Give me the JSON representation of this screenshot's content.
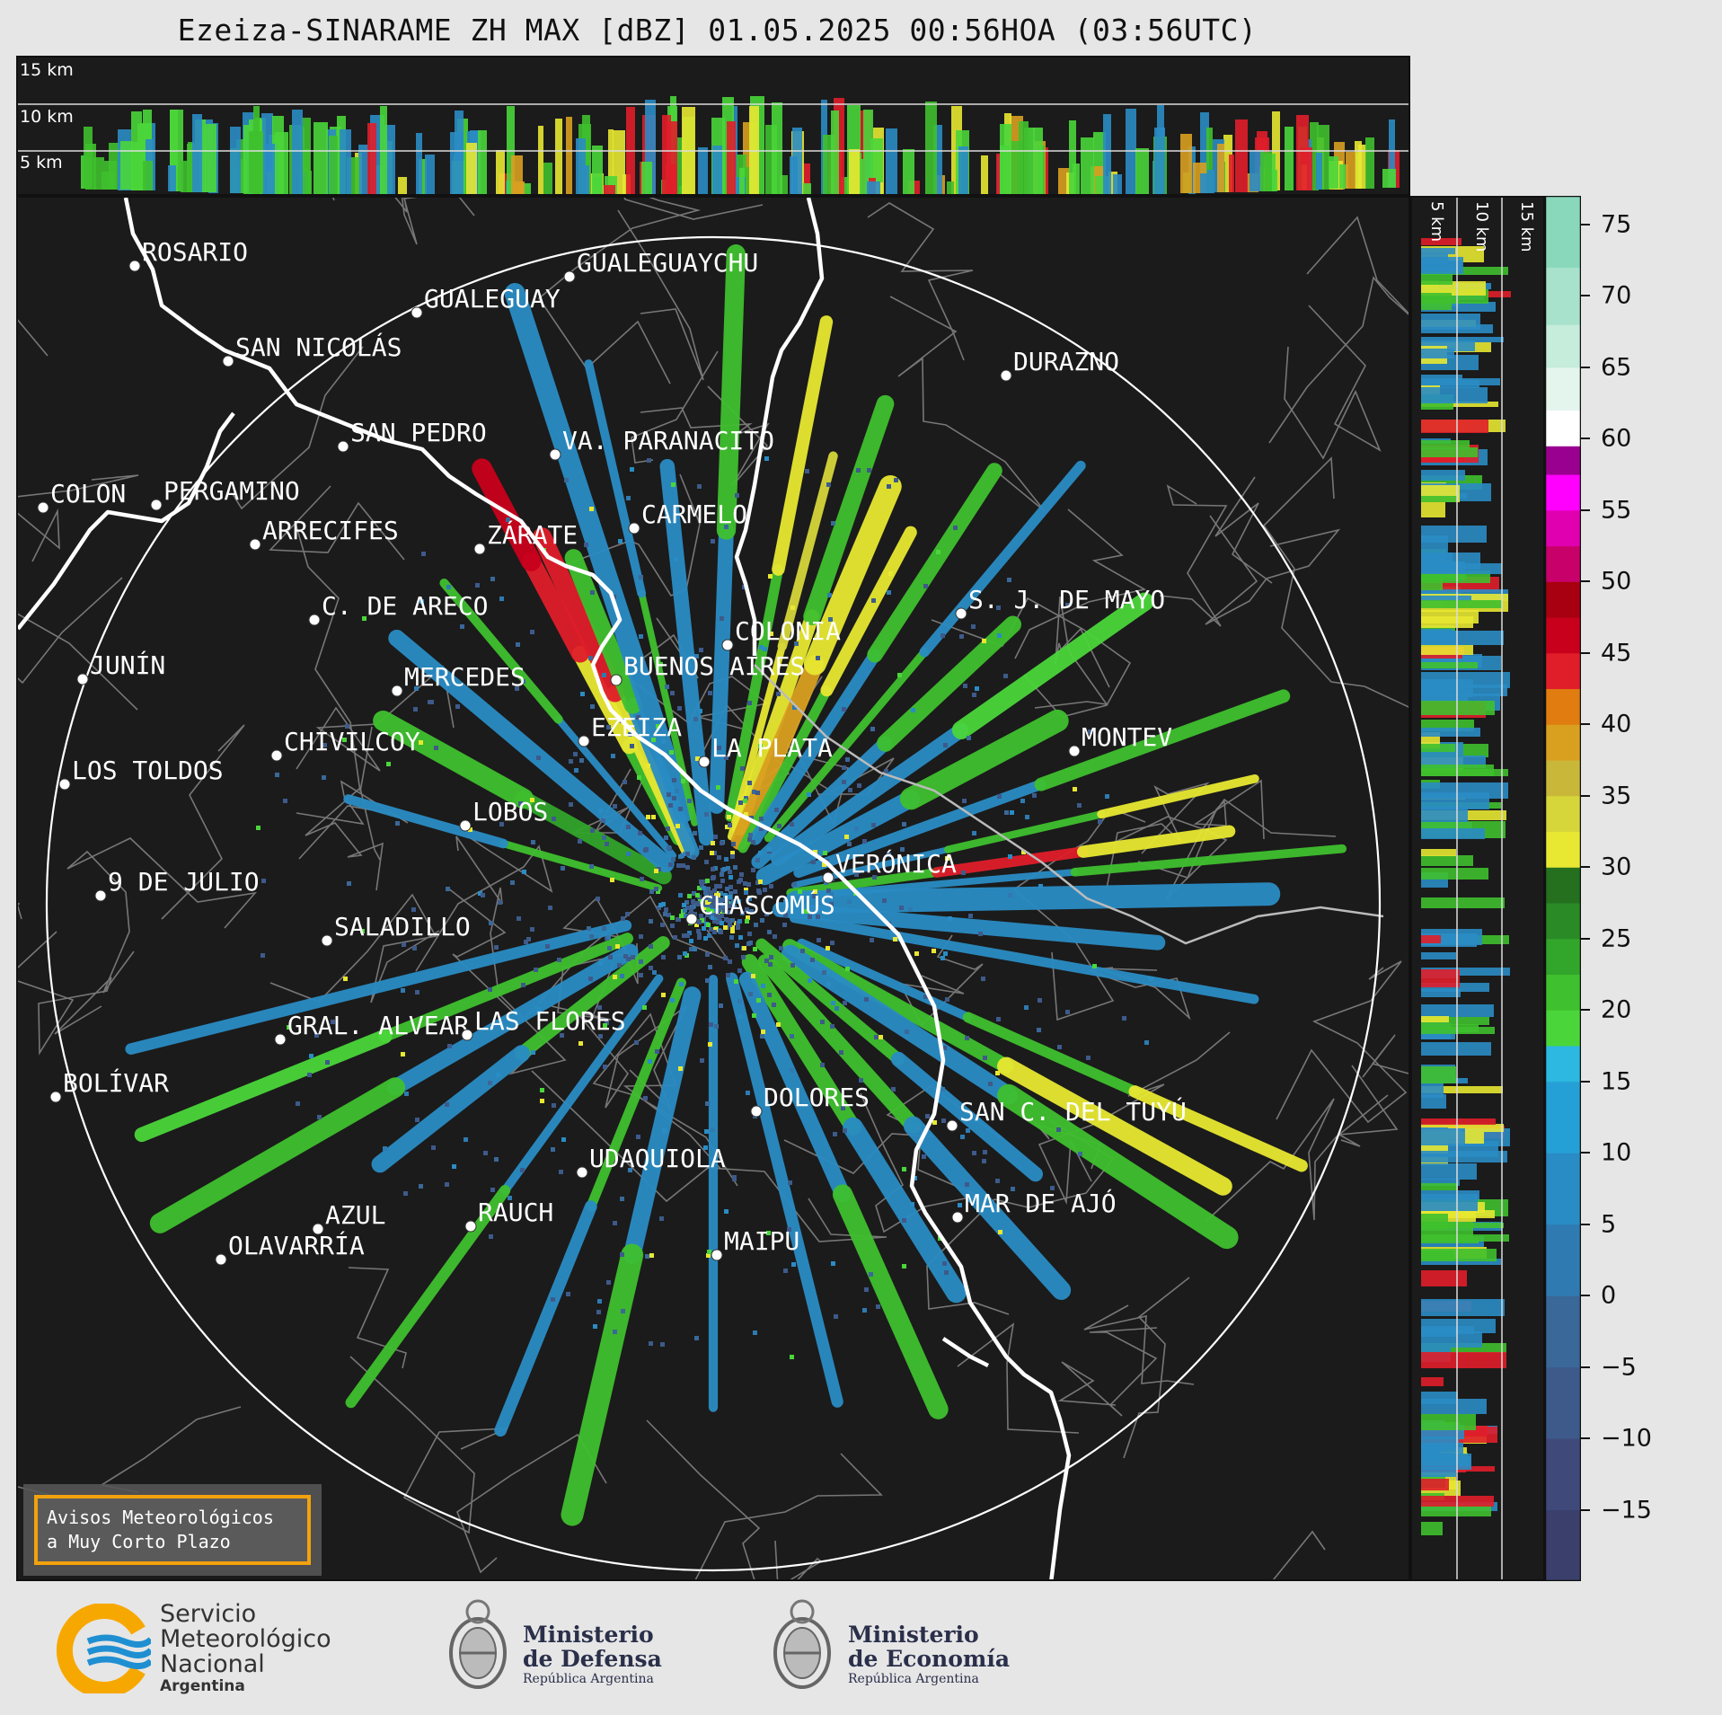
{
  "title": "Ezeiza-SINARAME ZH MAX [dBZ] 01.05.2025 00:56HOA (03:56UTC)",
  "top_panel": {
    "height_labels": [
      "15 km",
      "10 km",
      "5 km"
    ]
  },
  "side_panel": {
    "height_labels": [
      "5 km",
      "10 km",
      "15 km"
    ]
  },
  "colorbar": {
    "ticks": [
      "75",
      "70",
      "65",
      "60",
      "55",
      "50",
      "45",
      "40",
      "35",
      "30",
      "25",
      "20",
      "15",
      "10",
      "5",
      "0",
      "−5",
      "−10",
      "−15"
    ],
    "colors": [
      "#3a3f6b",
      "#3f4a7a",
      "#3d5a8a",
      "#3a6898",
      "#2f7ab0",
      "#2a8cc4",
      "#25a0d6",
      "#2cb8e0",
      "#4ad63a",
      "#3fc02e",
      "#32a52b",
      "#2a8a26",
      "#24701f",
      "#e8e832",
      "#d6d63a",
      "#c9b73a",
      "#d9a020",
      "#e07c10",
      "#e01e2a",
      "#c8001c",
      "#a80010",
      "#c8006a",
      "#e000b0",
      "#ff00ff",
      "#9a0090",
      "#ffffff",
      "#e4f5ee",
      "#c6ecdc",
      "#a8e2cc",
      "#8ad8bc"
    ]
  },
  "map": {
    "cities": [
      {
        "name": "ROSARIO"
      },
      {
        "name": "GUALEGUAYCHU"
      },
      {
        "name": "GUALEGUAY"
      },
      {
        "name": "SAN NICOLÁS"
      },
      {
        "name": "DURAZNO"
      },
      {
        "name": "SAN PEDRO"
      },
      {
        "name": "VA. PARANACITO"
      },
      {
        "name": "COLON"
      },
      {
        "name": "PERGAMINO"
      },
      {
        "name": "CARMELO"
      },
      {
        "name": "ARRECIFES"
      },
      {
        "name": "ZÁRATE"
      },
      {
        "name": "S. J. DE MAYO"
      },
      {
        "name": "C. DE ARECO"
      },
      {
        "name": "COLONIA"
      },
      {
        "name": "JUNÍN"
      },
      {
        "name": "BUENOS AIRES"
      },
      {
        "name": "MERCEDES"
      },
      {
        "name": "EZEIZA"
      },
      {
        "name": "MONTEV"
      },
      {
        "name": "CHIVILCOY"
      },
      {
        "name": "LA PLATA"
      },
      {
        "name": "LOS TOLDOS"
      },
      {
        "name": "LOBOS"
      },
      {
        "name": "VERÓNICA"
      },
      {
        "name": "9 DE JULIO"
      },
      {
        "name": "CHASCOMÚS"
      },
      {
        "name": "SALADILLO"
      },
      {
        "name": "GRAL. ALVEAR"
      },
      {
        "name": "LAS FLORES"
      },
      {
        "name": "BOLÍVAR"
      },
      {
        "name": "DOLORES"
      },
      {
        "name": "SAN C. DEL TUYÚ"
      },
      {
        "name": "UDAQUIOLA"
      },
      {
        "name": "MAR DE AJÓ"
      },
      {
        "name": "AZUL"
      },
      {
        "name": "RAUCH"
      },
      {
        "name": "MAIPU"
      },
      {
        "name": "OLAVARRÍA"
      }
    ]
  },
  "warning_box": {
    "line1": "Avisos Meteorológicos",
    "line2": "a Muy Corto Plazo"
  },
  "footer": {
    "smn_line1": "Servicio",
    "smn_line2": "Meteorológico",
    "smn_line3": "Nacional",
    "smn_line4": "Argentina",
    "defensa_line1": "Ministerio",
    "defensa_line2": "de Defensa",
    "defensa_line3": "República Argentina",
    "economia_line1": "Ministerio",
    "economia_line2": "de Economía",
    "economia_line3": "República Argentina"
  }
}
